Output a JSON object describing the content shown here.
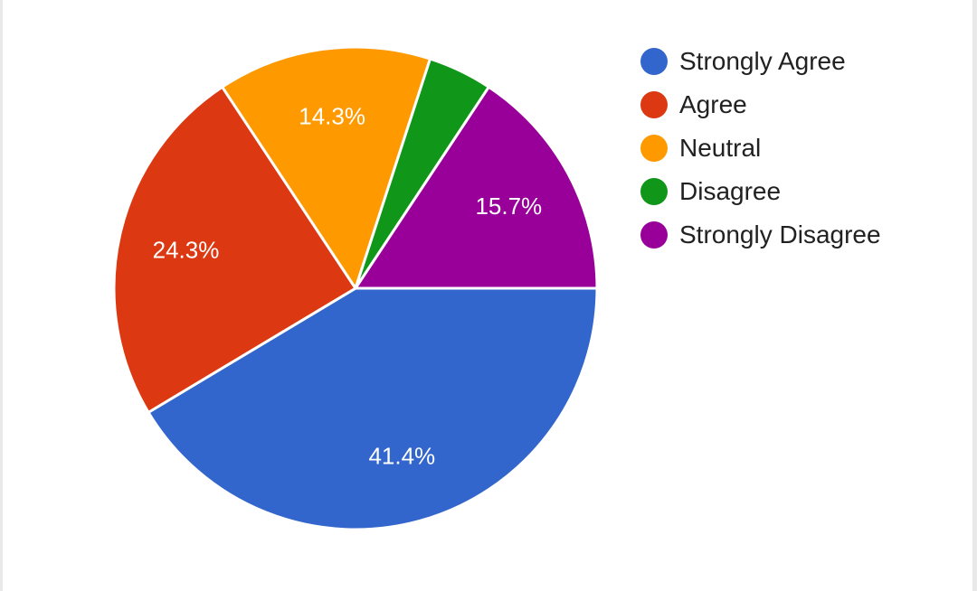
{
  "chart_data": {
    "type": "pie",
    "categories": [
      "Strongly Agree",
      "Agree",
      "Neutral",
      "Disagree",
      "Strongly Disagree"
    ],
    "values": [
      41.4,
      24.3,
      14.3,
      4.3,
      15.7
    ],
    "labels": [
      "41.4%",
      "24.3%",
      "14.3%",
      "",
      "15.7%"
    ],
    "colors": [
      "#3366cc",
      "#dc3912",
      "#ff9900",
      "#109618",
      "#990099"
    ],
    "legend_position": "right",
    "start_angle_deg": 0,
    "direction": "clockwise-from-3-oclock"
  }
}
